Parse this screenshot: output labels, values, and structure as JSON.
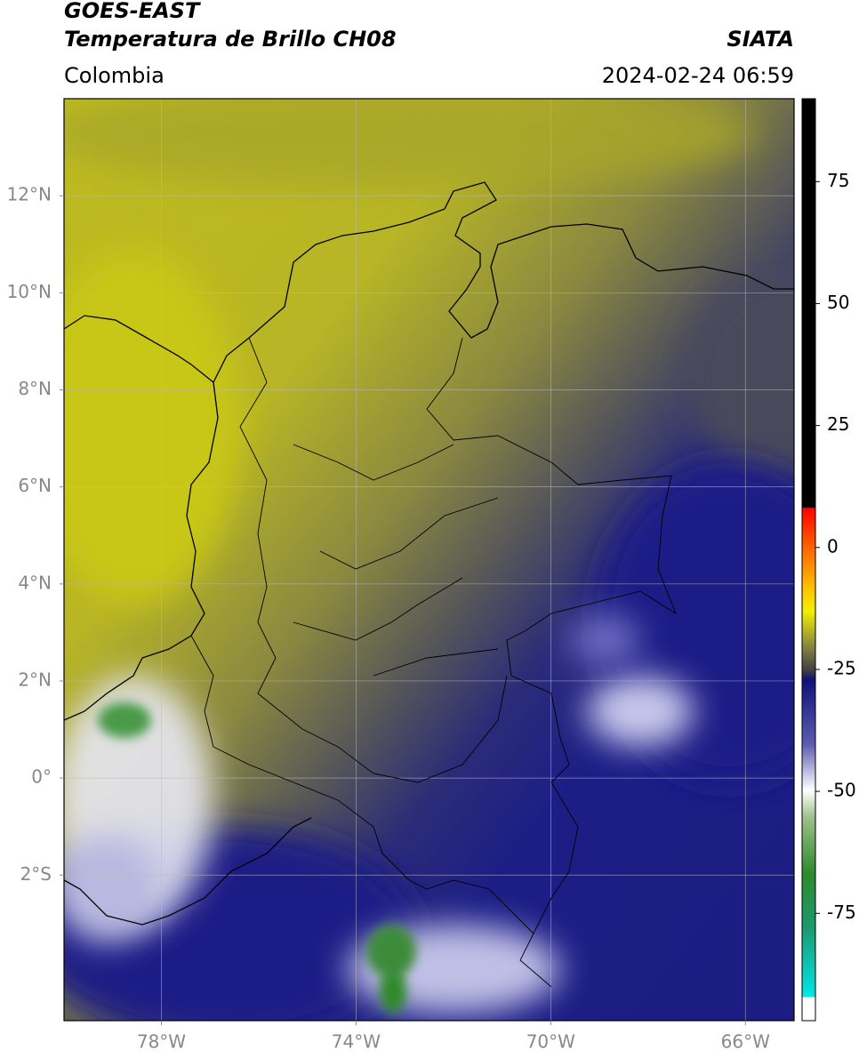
{
  "header": {
    "title": "GOES-EAST",
    "subtitle": "Temperatura de Brillo CH08",
    "source": "SIATA",
    "region": "Colombia",
    "datetime": "2024-02-24 06:59"
  },
  "map": {
    "xlim": [
      -80,
      -65
    ],
    "ylim": [
      -5,
      14
    ],
    "yticks": [
      {
        "value": 12,
        "label": "12°N"
      },
      {
        "value": 10,
        "label": "10°N"
      },
      {
        "value": 8,
        "label": "8°N"
      },
      {
        "value": 6,
        "label": "6°N"
      },
      {
        "value": 4,
        "label": "4°N"
      },
      {
        "value": 2,
        "label": "2°N"
      },
      {
        "value": 0,
        "label": "0°"
      },
      {
        "value": -2,
        "label": "2°S"
      }
    ],
    "xticks": [
      {
        "value": -78,
        "label": "78°W"
      },
      {
        "value": -74,
        "label": "74°W"
      },
      {
        "value": -70,
        "label": "70°W"
      },
      {
        "value": -66,
        "label": "66°W"
      }
    ],
    "grid": true
  },
  "colorbar": {
    "lim": [
      -97,
      92
    ],
    "ticks": [
      75,
      50,
      25,
      0,
      -25,
      -50,
      -75
    ]
  }
}
